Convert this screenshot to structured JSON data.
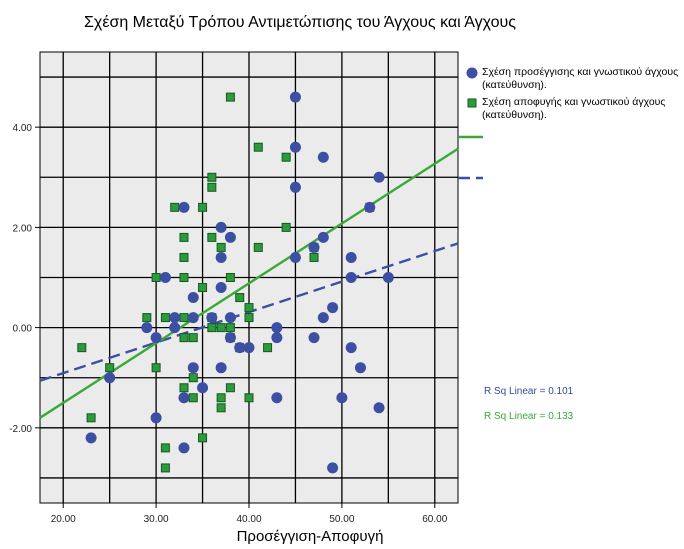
{
  "chart_data": {
    "type": "scatter",
    "title": "Σχέση Μεταξύ Τρόπου Αντιμετώπισης του Άγχους και Άγχους",
    "xlabel": "Προσέγγιση-Αποφυγή",
    "ylabel": "",
    "xlim": [
      17.5,
      62.5
    ],
    "ylim": [
      -3.5,
      5.5
    ],
    "xticks": [
      "20.00",
      "30.00",
      "40.00",
      "50.00",
      "60.00"
    ],
    "yticks": [
      "-2.00",
      "0.00",
      "2.00",
      "4.00"
    ],
    "grid": true,
    "legend_position": "right",
    "series": [
      {
        "name": "Σχέση προσέγγισης και γνωστικού άγχους (κατεύθυνση).",
        "marker": "circle",
        "color": "#3c4fa3",
        "points": [
          [
            23,
            -2.2
          ],
          [
            25,
            -1.0
          ],
          [
            29,
            0.0
          ],
          [
            30,
            -0.2
          ],
          [
            30,
            -1.8
          ],
          [
            31,
            1.0
          ],
          [
            32,
            0.2
          ],
          [
            32,
            0.0
          ],
          [
            33,
            2.4
          ],
          [
            33,
            -1.4
          ],
          [
            33,
            -2.4
          ],
          [
            34,
            0.6
          ],
          [
            34,
            0.2
          ],
          [
            34,
            -0.8
          ],
          [
            35,
            -1.2
          ],
          [
            36,
            0.2
          ],
          [
            37,
            2.0
          ],
          [
            37,
            1.4
          ],
          [
            37,
            0.8
          ],
          [
            37,
            -0.8
          ],
          [
            38,
            1.8
          ],
          [
            38,
            0.2
          ],
          [
            38,
            -0.2
          ],
          [
            39,
            -0.4
          ],
          [
            40,
            -0.4
          ],
          [
            43,
            0.0
          ],
          [
            43,
            -0.2
          ],
          [
            43,
            -1.4
          ],
          [
            45,
            4.6
          ],
          [
            45,
            3.6
          ],
          [
            45,
            2.8
          ],
          [
            45,
            1.4
          ],
          [
            47,
            1.6
          ],
          [
            47,
            -0.2
          ],
          [
            48,
            3.4
          ],
          [
            48,
            1.8
          ],
          [
            48,
            0.2
          ],
          [
            49,
            0.4
          ],
          [
            49,
            -2.8
          ],
          [
            50,
            -1.4
          ],
          [
            51,
            1.4
          ],
          [
            51,
            1.0
          ],
          [
            51,
            -0.4
          ],
          [
            52,
            -0.8
          ],
          [
            53,
            2.4
          ],
          [
            54,
            3.0
          ],
          [
            54,
            -1.6
          ],
          [
            55,
            1.0
          ]
        ]
      },
      {
        "name": "Σχέση αποφυγής και γνωστικού άγχους (κατεύθυνση).",
        "marker": "square",
        "color": "#2e9a3e",
        "points": [
          [
            22,
            -0.4
          ],
          [
            23,
            -1.8
          ],
          [
            25,
            -0.8
          ],
          [
            29,
            0.2
          ],
          [
            30,
            1.0
          ],
          [
            30,
            -0.8
          ],
          [
            31,
            0.2
          ],
          [
            31,
            -2.4
          ],
          [
            31,
            -2.8
          ],
          [
            32,
            2.4
          ],
          [
            33,
            1.8
          ],
          [
            33,
            1.4
          ],
          [
            33,
            1.0
          ],
          [
            33,
            0.2
          ],
          [
            33,
            -0.2
          ],
          [
            33,
            -1.2
          ],
          [
            34,
            -0.2
          ],
          [
            34,
            -1.0
          ],
          [
            34,
            -1.4
          ],
          [
            35,
            2.4
          ],
          [
            35,
            0.8
          ],
          [
            35,
            -2.2
          ],
          [
            36,
            3.0
          ],
          [
            36,
            2.8
          ],
          [
            36,
            1.8
          ],
          [
            36,
            0.2
          ],
          [
            36,
            0.0
          ],
          [
            37,
            1.6
          ],
          [
            37,
            0.0
          ],
          [
            37,
            -1.4
          ],
          [
            37,
            -1.6
          ],
          [
            38,
            4.6
          ],
          [
            38,
            1.0
          ],
          [
            38,
            0.0
          ],
          [
            38,
            -0.2
          ],
          [
            38,
            -1.2
          ],
          [
            39,
            0.6
          ],
          [
            39,
            -0.4
          ],
          [
            40,
            0.4
          ],
          [
            40,
            0.2
          ],
          [
            40,
            -1.4
          ],
          [
            41,
            3.6
          ],
          [
            41,
            1.6
          ],
          [
            42,
            -0.4
          ],
          [
            44,
            3.4
          ],
          [
            44,
            2.0
          ],
          [
            47,
            1.6
          ],
          [
            47,
            1.4
          ],
          [
            53,
            2.4
          ]
        ]
      }
    ],
    "fit_lines": [
      {
        "series": 0,
        "style": "dashed",
        "color": "#3c4fa3",
        "x": [
          17.5,
          62.5
        ],
        "y": [
          -1.06,
          1.68
        ],
        "label": "R Sq Linear = 0.101"
      },
      {
        "series": 1,
        "style": "solid",
        "color": "#3aa93a",
        "x": [
          17.5,
          62.5
        ],
        "y": [
          -1.8,
          3.57
        ],
        "label": "R Sq Linear = 0.133"
      }
    ]
  }
}
